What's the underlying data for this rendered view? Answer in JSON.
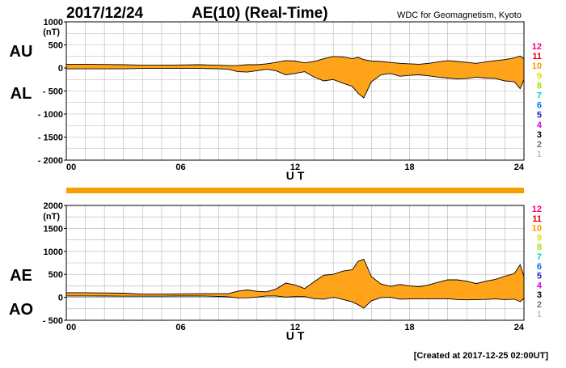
{
  "header": {
    "date": "2017/12/24",
    "title": "AE(10) (Real-Time)",
    "source": "WDC for Geomagnetism, Kyoto"
  },
  "footer": {
    "created": "[Created at 2017-12-25 02:00UT]"
  },
  "colors": {
    "fill": "#ffa31a",
    "line": "#000000",
    "grid": "#b4b4b4",
    "bar": "#f5a000"
  },
  "station_legend": [
    {
      "label": "12",
      "color": "#ff0080"
    },
    {
      "label": "11",
      "color": "#e00000"
    },
    {
      "label": "10",
      "color": "#ff9900"
    },
    {
      "label": "9",
      "color": "#e0e000"
    },
    {
      "label": "8",
      "color": "#a0e000"
    },
    {
      "label": "7",
      "color": "#00d0d0"
    },
    {
      "label": "6",
      "color": "#0070ff"
    },
    {
      "label": "5",
      "color": "#2020c0"
    },
    {
      "label": "4",
      "color": "#e000e0"
    },
    {
      "label": "3",
      "color": "#000000"
    },
    {
      "label": "2",
      "color": "#707070"
    },
    {
      "label": "1",
      "color": "#c0c0c0"
    }
  ],
  "chart_data": [
    {
      "type": "area",
      "unit": "(nT)",
      "label_upper": "AU",
      "label_lower": "AL",
      "xlabel": "U T",
      "xlim": [
        0,
        24
      ],
      "ylim": [
        -2000,
        1000
      ],
      "x_ticks": [
        "00",
        "06",
        "12",
        "18",
        "24"
      ],
      "y_ticks": [
        "1000",
        "500",
        "0",
        "- 500",
        "- 1000",
        "- 1500",
        "- 2000"
      ],
      "grid": true,
      "series": [
        {
          "name": "AU",
          "x": [
            0,
            1,
            2,
            3,
            4,
            5,
            6,
            7,
            8,
            8.5,
            9,
            9.5,
            10,
            10.5,
            11,
            11.5,
            12,
            12.5,
            13,
            13.5,
            14,
            14.5,
            15,
            15.3,
            15.6,
            16,
            16.5,
            17,
            17.5,
            18,
            18.5,
            19,
            19.5,
            20,
            20.5,
            21,
            21.5,
            22,
            22.5,
            23,
            23.5,
            23.8,
            24
          ],
          "values": [
            80,
            80,
            75,
            70,
            60,
            60,
            65,
            70,
            60,
            50,
            55,
            70,
            70,
            90,
            120,
            160,
            150,
            110,
            140,
            200,
            250,
            240,
            200,
            230,
            180,
            150,
            140,
            120,
            100,
            90,
            80,
            100,
            130,
            160,
            140,
            120,
            100,
            130,
            160,
            180,
            220,
            260,
            200
          ]
        },
        {
          "name": "AL",
          "x": [
            0,
            1,
            2,
            3,
            4,
            5,
            6,
            7,
            8,
            8.5,
            9,
            9.5,
            10,
            10.5,
            11,
            11.5,
            12,
            12.5,
            13,
            13.5,
            14,
            14.5,
            15,
            15.3,
            15.6,
            16,
            16.5,
            17,
            17.5,
            18,
            18.5,
            19,
            19.5,
            20,
            20.5,
            21,
            21.5,
            22,
            22.5,
            23,
            23.5,
            23.8,
            24
          ],
          "values": [
            -20,
            -20,
            -20,
            -20,
            -10,
            -10,
            -10,
            -10,
            -20,
            -30,
            -80,
            -90,
            -60,
            -30,
            -60,
            -150,
            -120,
            -80,
            -200,
            -280,
            -250,
            -330,
            -400,
            -550,
            -650,
            -300,
            -150,
            -120,
            -180,
            -160,
            -150,
            -170,
            -200,
            -220,
            -240,
            -230,
            -200,
            -220,
            -230,
            -280,
            -300,
            -450,
            -250
          ]
        }
      ]
    },
    {
      "type": "area",
      "unit": "(nT)",
      "label_upper": "AE",
      "label_lower": "AO",
      "xlabel": "U T",
      "xlim": [
        0,
        24
      ],
      "ylim": [
        -500,
        2000
      ],
      "x_ticks": [
        "00",
        "06",
        "12",
        "18",
        "24"
      ],
      "y_ticks": [
        "2000",
        "1500",
        "1000",
        "500",
        "0",
        "- 500"
      ],
      "grid": true,
      "series": [
        {
          "name": "AE",
          "x": [
            0,
            1,
            2,
            3,
            4,
            5,
            6,
            7,
            8,
            8.5,
            9,
            9.5,
            10,
            10.5,
            11,
            11.5,
            12,
            12.5,
            13,
            13.5,
            14,
            14.5,
            15,
            15.3,
            15.6,
            16,
            16.5,
            17,
            17.5,
            18,
            18.5,
            19,
            19.5,
            20,
            20.5,
            21,
            21.5,
            22,
            22.5,
            23,
            23.5,
            23.8,
            24
          ],
          "values": [
            100,
            100,
            95,
            90,
            70,
            70,
            75,
            80,
            80,
            80,
            135,
            160,
            130,
            120,
            180,
            310,
            270,
            190,
            340,
            480,
            500,
            570,
            600,
            780,
            830,
            450,
            290,
            240,
            280,
            250,
            230,
            270,
            330,
            380,
            380,
            350,
            300,
            350,
            390,
            460,
            520,
            710,
            450
          ]
        },
        {
          "name": "AO",
          "x": [
            0,
            1,
            2,
            3,
            4,
            5,
            6,
            7,
            8,
            8.5,
            9,
            9.5,
            10,
            10.5,
            11,
            11.5,
            12,
            12.5,
            13,
            13.5,
            14,
            14.5,
            15,
            15.3,
            15.6,
            16,
            16.5,
            17,
            17.5,
            18,
            18.5,
            19,
            19.5,
            20,
            20.5,
            21,
            21.5,
            22,
            22.5,
            23,
            23.5,
            23.8,
            24
          ],
          "values": [
            30,
            30,
            28,
            25,
            25,
            25,
            28,
            30,
            20,
            10,
            -12,
            -10,
            5,
            30,
            30,
            5,
            15,
            15,
            -30,
            -40,
            0,
            -45,
            -100,
            -160,
            -235,
            -75,
            -5,
            0,
            -40,
            -35,
            -35,
            -35,
            -35,
            -30,
            -50,
            -55,
            -50,
            -45,
            -35,
            -50,
            -40,
            -95,
            -25
          ]
        }
      ]
    }
  ]
}
